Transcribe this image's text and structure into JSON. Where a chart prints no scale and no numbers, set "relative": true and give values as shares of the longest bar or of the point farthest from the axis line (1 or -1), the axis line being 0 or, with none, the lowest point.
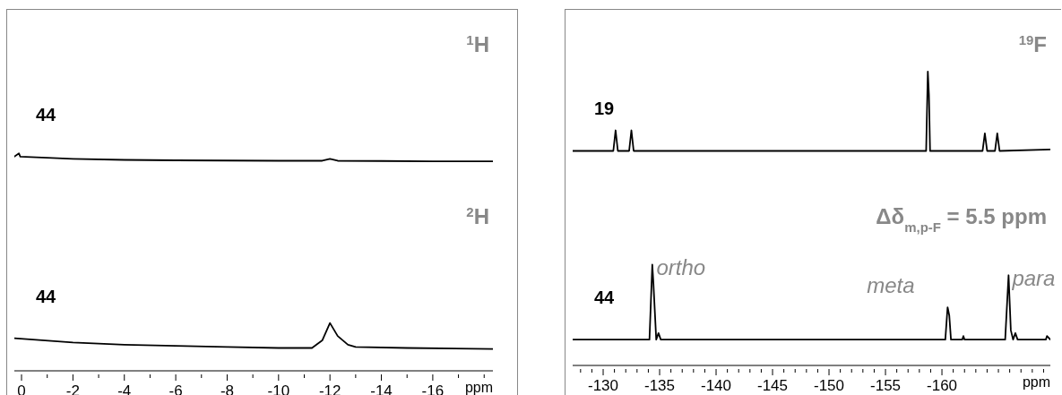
{
  "chart_data": [
    {
      "type": "line",
      "relative": true,
      "xlabel": "ppm",
      "xlim": [
        0.28,
        -18.34
      ],
      "xticks": [
        0,
        -2,
        -4,
        -6,
        -8,
        -10,
        -12,
        -14,
        -16,
        {
          "value": -1,
          "label": null
        },
        {
          "value": -3,
          "label": null
        },
        {
          "value": -5,
          "label": null
        },
        {
          "value": -7,
          "label": null
        },
        {
          "value": -9,
          "label": null
        },
        {
          "value": -11,
          "label": null
        },
        {
          "value": -13,
          "label": null
        },
        {
          "value": -15,
          "label": null
        },
        {
          "value": -17,
          "label": null
        },
        {
          "value": -18,
          "label": null
        }
      ],
      "series": [
        {
          "name": "44",
          "color": "#000000",
          "x": [
            0.28,
            0.1,
            0.05,
            -1,
            -2,
            -4,
            -6,
            -8,
            -10,
            -11.7,
            -12,
            -12.3,
            -14,
            -16,
            -18.34
          ],
          "values": [
            0.985,
            1.0,
            0.985,
            0.98,
            0.975,
            0.97,
            0.968,
            0.967,
            0.966,
            0.966,
            0.975,
            0.966,
            0.965,
            0.963,
            0.963
          ]
        },
        {
          "name": "44",
          "color": "#000000",
          "x": [
            0.28,
            -2,
            -4,
            -6,
            -8,
            -10,
            -11.3,
            -11.7,
            -12,
            -12.3,
            -12.7,
            -13,
            -15,
            -18.34
          ],
          "values": [
            0.15,
            0.13,
            0.12,
            0.115,
            0.11,
            0.105,
            0.105,
            0.14,
            0.22,
            0.16,
            0.12,
            0.11,
            0.105,
            0.1
          ]
        }
      ],
      "annotations": [
        "$^{1}$H",
        "$^{2}$H"
      ]
    },
    {
      "type": "line",
      "relative": true,
      "xlabel": "ppm",
      "xlim": [
        -127.3,
        -169.6
      ],
      "xticks": [
        -130,
        -135,
        -140,
        -145,
        -150,
        -155,
        -160,
        {
          "value": -165,
          "label": null
        },
        {
          "value": -128,
          "label": null
        },
        {
          "value": -129,
          "label": null
        },
        {
          "value": -131,
          "label": null
        },
        {
          "value": -132,
          "label": null
        },
        {
          "value": -133,
          "label": null
        },
        {
          "value": -134,
          "label": null
        },
        {
          "value": -136,
          "label": null
        },
        {
          "value": -137,
          "label": null
        },
        {
          "value": -138,
          "label": null
        },
        {
          "value": -139,
          "label": null
        },
        {
          "value": -141,
          "label": null
        },
        {
          "value": -142,
          "label": null
        },
        {
          "value": -143,
          "label": null
        },
        {
          "value": -144,
          "label": null
        },
        {
          "value": -146,
          "label": null
        },
        {
          "value": -147,
          "label": null
        },
        {
          "value": -148,
          "label": null
        },
        {
          "value": -149,
          "label": null
        },
        {
          "value": -151,
          "label": null
        },
        {
          "value": -152,
          "label": null
        },
        {
          "value": -153,
          "label": null
        },
        {
          "value": -154,
          "label": null
        },
        {
          "value": -156,
          "label": null
        },
        {
          "value": -157,
          "label": null
        },
        {
          "value": -158,
          "label": null
        },
        {
          "value": -159,
          "label": null
        },
        {
          "value": -161,
          "label": null
        },
        {
          "value": -162,
          "label": null
        },
        {
          "value": -163,
          "label": null
        },
        {
          "value": -164,
          "label": null
        },
        {
          "value": -166,
          "label": null
        },
        {
          "value": -167,
          "label": null
        },
        {
          "value": -168,
          "label": null
        },
        {
          "value": -169,
          "label": null
        }
      ],
      "series": [
        {
          "name": "19",
          "color": "#000000",
          "x": [
            -127.3,
            -130.9,
            -131.1,
            -131.3,
            -132.3,
            -132.5,
            -132.7,
            -158.6,
            -158.75,
            -158.85,
            -158.95,
            -163.6,
            -163.8,
            -164.0,
            -164.7,
            -164.9,
            -165.1,
            -169.6
          ],
          "values": [
            0.73,
            0.73,
            0.8,
            0.73,
            0.73,
            0.8,
            0.73,
            0.73,
            1.0,
            0.92,
            0.73,
            0.73,
            0.79,
            0.73,
            0.73,
            0.79,
            0.73,
            0.735
          ]
        },
        {
          "name": "44",
          "color": "#000000",
          "x": [
            -127.3,
            -134.1,
            -134.35,
            -134.45,
            -134.7,
            -134.9,
            -135.1,
            -160.3,
            -160.5,
            -160.65,
            -160.8,
            -161.8,
            -161.9,
            -162,
            -165.6,
            -165.9,
            -166.1,
            -166.3,
            -166.5,
            -166.7,
            -169.2,
            -169.3,
            -169.6
          ],
          "values": [
            0.088,
            0.088,
            0.343,
            0.28,
            0.088,
            0.11,
            0.088,
            0.088,
            0.198,
            0.17,
            0.088,
            0.088,
            0.1,
            0.088,
            0.088,
            0.307,
            0.12,
            0.088,
            0.11,
            0.088,
            0.088,
            0.1,
            0.088
          ]
        }
      ],
      "annotations": [
        "$^{19}$F",
        {
          "text": "ortho",
          "x": -134.4,
          "y": 0.343
        },
        {
          "text": "meta",
          "x": -160.6,
          "y": 0.198
        },
        {
          "text": "para",
          "x": -165.9,
          "y": 0.307
        },
        "Δδ$_{m,p-F}$ = 5.5 ppm"
      ]
    }
  ]
}
